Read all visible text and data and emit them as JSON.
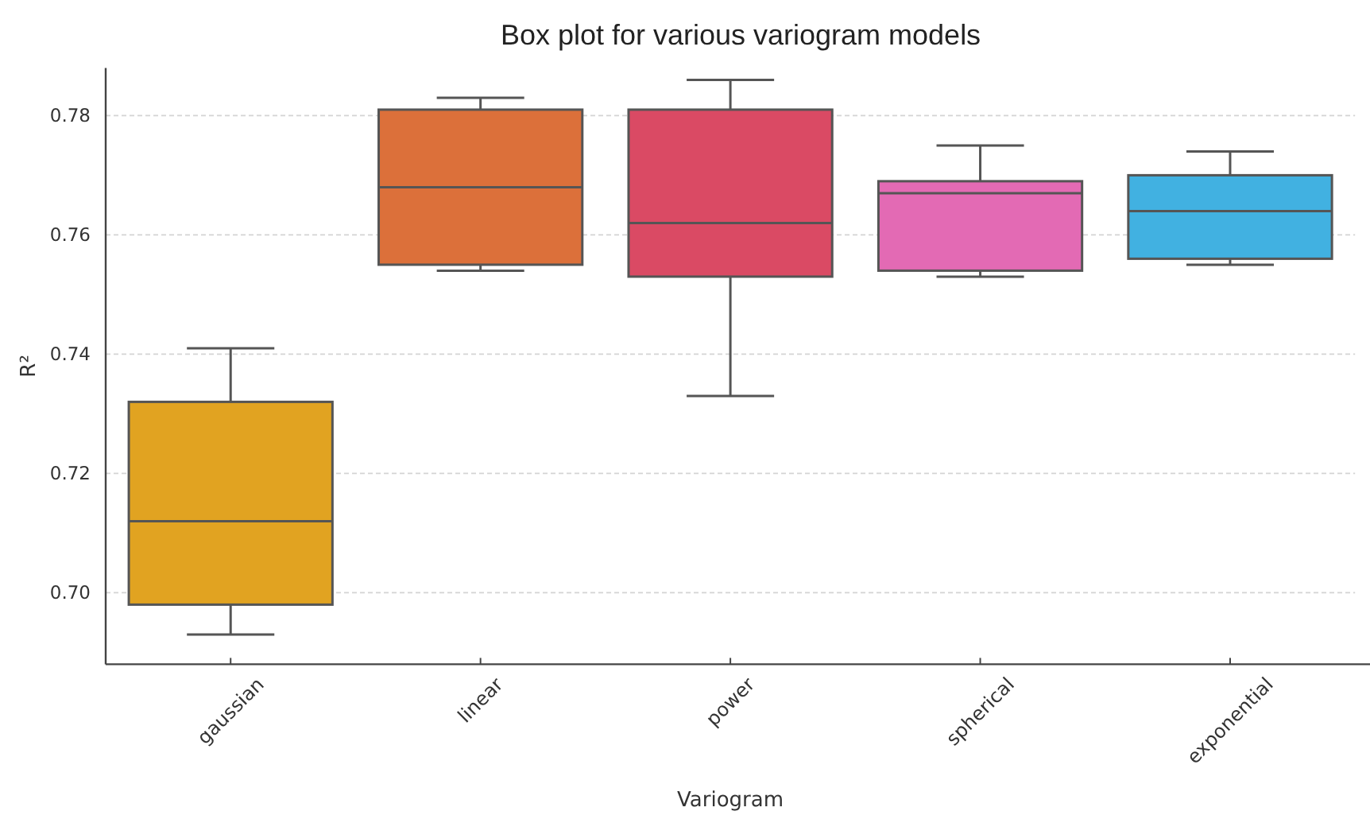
{
  "chart_data": {
    "type": "box",
    "title": "Box plot for various variogram models",
    "xlabel": "Variogram",
    "ylabel": "R²",
    "categories": [
      "gaussian",
      "linear",
      "power",
      "spherical",
      "exponential"
    ],
    "boxes": [
      {
        "low": 0.693,
        "q1": 0.698,
        "median": 0.712,
        "q3": 0.732,
        "high": 0.741
      },
      {
        "low": 0.754,
        "q1": 0.755,
        "median": 0.768,
        "q3": 0.781,
        "high": 0.783
      },
      {
        "low": 0.733,
        "q1": 0.753,
        "median": 0.762,
        "q3": 0.781,
        "high": 0.786
      },
      {
        "low": 0.753,
        "q1": 0.754,
        "median": 0.767,
        "q3": 0.769,
        "high": 0.775
      },
      {
        "low": 0.755,
        "q1": 0.756,
        "median": 0.764,
        "q3": 0.77,
        "high": 0.774
      }
    ],
    "colors": [
      "#e1a321",
      "#dc703a",
      "#da4a64",
      "#e36ab4",
      "#41b1e1"
    ],
    "ylim": [
      0.688,
      0.788
    ],
    "yticks": [
      {
        "value": 0.7,
        "label": "0.70"
      },
      {
        "value": 0.72,
        "label": "0.72"
      },
      {
        "value": 0.74,
        "label": "0.74"
      },
      {
        "value": 0.76,
        "label": "0.76"
      },
      {
        "value": 0.78,
        "label": "0.78"
      }
    ],
    "grid": "y"
  }
}
